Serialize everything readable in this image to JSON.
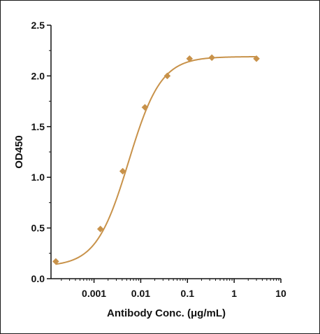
{
  "chart_data": {
    "type": "scatter",
    "title": "",
    "xlabel": "Antibody Conc. (μg/mL)",
    "ylabel": "OD450",
    "x_scale": "log",
    "xlim": [
      0.00012,
      10
    ],
    "ylim": [
      0,
      2.5
    ],
    "x_ticks": [
      0.001,
      0.01,
      0.1,
      1,
      10
    ],
    "x_tick_labels": [
      "0.001",
      "0.01",
      "0.1",
      "1",
      "10"
    ],
    "y_ticks": [
      0,
      0.5,
      1.0,
      1.5,
      2.0,
      2.5
    ],
    "y_tick_labels": [
      "0.0",
      "0.5",
      "1.0",
      "1.5",
      "2.0",
      "2.5"
    ],
    "grid": false,
    "legend": "none",
    "series": [
      {
        "marker": "diamond",
        "color": "#c8924a",
        "points": [
          {
            "x": 0.000152,
            "y": 0.17
          },
          {
            "x": 0.00137,
            "y": 0.49
          },
          {
            "x": 0.00412,
            "y": 1.06
          },
          {
            "x": 0.0123,
            "y": 1.69
          },
          {
            "x": 0.037,
            "y": 2.0
          },
          {
            "x": 0.111,
            "y": 2.17
          },
          {
            "x": 0.333,
            "y": 2.18
          },
          {
            "x": 3.0,
            "y": 2.17
          }
        ],
        "fit": {
          "model": "4PL",
          "bottom": 0.12,
          "top": 2.19,
          "ec50": 0.0055,
          "hill": 1.25
        }
      }
    ]
  }
}
